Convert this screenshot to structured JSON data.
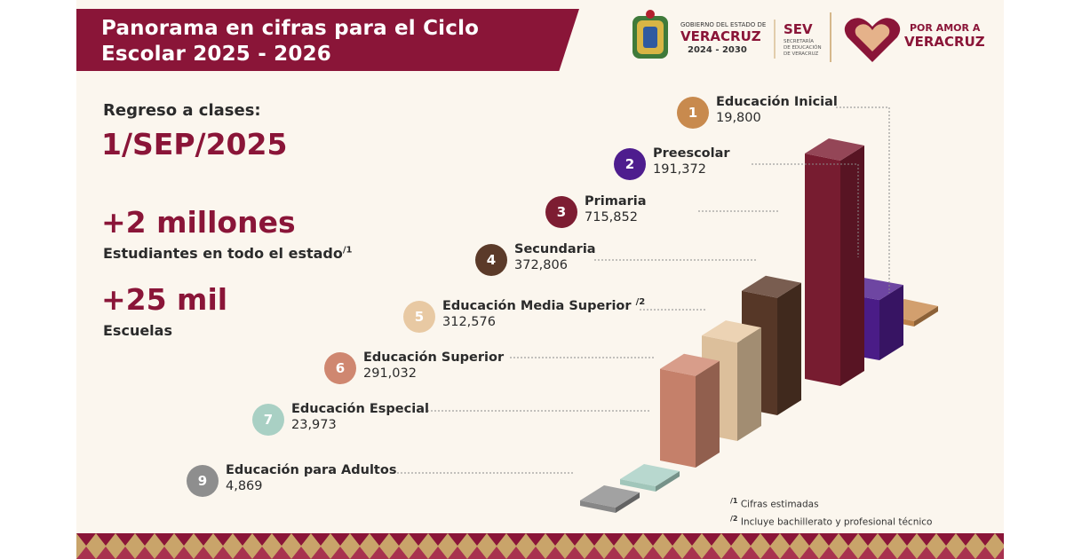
{
  "header": {
    "title_line1": "Panorama en cifras para el Ciclo",
    "title_line2": "Escolar 2025 - 2026"
  },
  "logos": {
    "gov_line1": "GOBIERNO DEL ESTADO DE",
    "gov_line2": "VERACRUZ",
    "gov_years": "2024 - 2030",
    "sev_abbr": "SEV",
    "sev_line1": "SECRETARÍA",
    "sev_line2": "DE EDUCACIÓN",
    "sev_line3": "DE VERACRUZ",
    "slogan_line1": "POR AMOR A",
    "slogan_line2": "VERACRUZ"
  },
  "summary": {
    "regreso_label": "Regreso a clases:",
    "regreso_date": "1/SEP/2025",
    "students_value": "+2 millones",
    "students_label": "Estudiantes en todo el estado",
    "students_note": "/1",
    "schools_value": "+25 mil",
    "schools_label": "Escuelas"
  },
  "chart_data": {
    "type": "bar",
    "title": "",
    "categories": [
      "Educación Inicial",
      "Preescolar",
      "Primaria",
      "Secundaria",
      "Educación Media Superior",
      "Educación Superior",
      "Educación Especial",
      "Educación para Adultos"
    ],
    "numbers": [
      "1",
      "2",
      "3",
      "4",
      "5",
      "6",
      "7",
      "9"
    ],
    "notes": [
      "",
      "",
      "",
      "",
      "/2",
      "",
      "",
      ""
    ],
    "values": [
      19800,
      191372,
      715852,
      372806,
      312576,
      291032,
      23973,
      4869
    ],
    "value_labels": [
      "19,800",
      "191,372",
      "715,852",
      "372,806",
      "312,576",
      "291,032",
      "23,973",
      "4,869"
    ],
    "colors": [
      "#c88a4e",
      "#4e1d8e",
      "#7d1d32",
      "#5b3a29",
      "#e8c9a3",
      "#cf8770",
      "#a9d0c4",
      "#8e8e8e"
    ]
  },
  "footnotes": {
    "note1_mark": "/1",
    "note1_text": "Cifras estimadas",
    "note2_mark": "/2",
    "note2_text": "Incluye bachillerato y profesional técnico"
  },
  "colors": {
    "brand": "#8a1538",
    "background": "#fbf6ee",
    "gold": "#c9a46a"
  }
}
